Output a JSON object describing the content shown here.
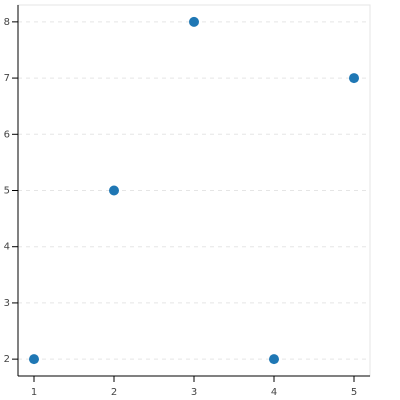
{
  "chart_data": {
    "type": "scatter",
    "x": [
      1,
      2,
      3,
      4,
      5
    ],
    "values": [
      2,
      5,
      8,
      2,
      7
    ],
    "color": "#1f77b4",
    "xlim": [
      0.8,
      5.2
    ],
    "ylim": [
      1.7,
      8.3
    ],
    "xticks": [
      1,
      2,
      3,
      4,
      5
    ],
    "yticks": [
      2,
      3,
      4,
      5,
      6,
      7,
      8
    ],
    "grid": "y"
  }
}
